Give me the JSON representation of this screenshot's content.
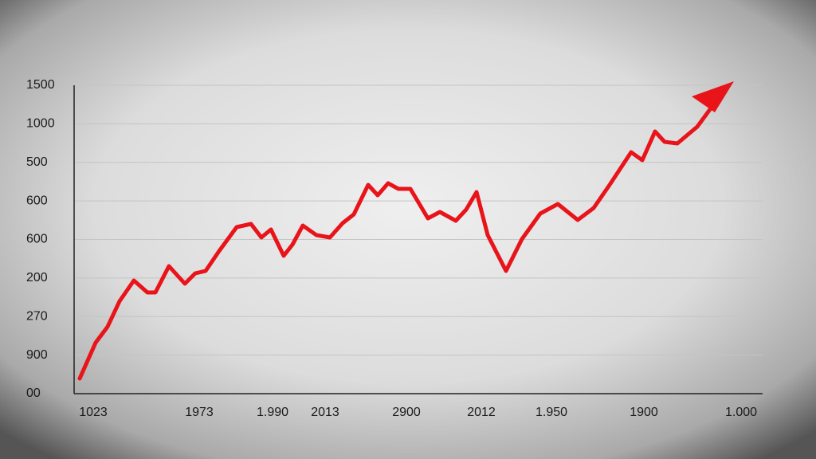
{
  "y_axis_labels": [
    "1500",
    "1000",
    "500",
    "600",
    "600",
    "200",
    "270",
    "900",
    "00"
  ],
  "x_axis_labels": [
    "1023",
    "1973",
    "1.990",
    "2013",
    "2900",
    "2012",
    "1.950",
    "1900",
    "1.000"
  ]
}
